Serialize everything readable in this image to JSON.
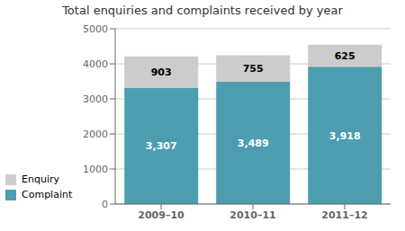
{
  "chart_data": {
    "type": "bar",
    "title": "Total enquiries and complaints received by year",
    "categories": [
      "2009–10",
      "2010–11",
      "2011–12"
    ],
    "stacked": true,
    "data_labels": true,
    "grid": true,
    "legend": "left",
    "series": [
      {
        "name": "Complaint",
        "color": "#4d9db0",
        "values": [
          3307,
          3489,
          3918
        ],
        "value_labels": [
          "3,307",
          "3,489",
          "3,918"
        ]
      },
      {
        "name": "Enquiry",
        "color": "#cccccc",
        "values": [
          903,
          755,
          625
        ],
        "value_labels": [
          "903",
          "755",
          "625"
        ]
      }
    ],
    "ylim": [
      0,
      5000
    ],
    "yticks": [
      0,
      1000,
      2000,
      3000,
      4000,
      5000
    ]
  }
}
